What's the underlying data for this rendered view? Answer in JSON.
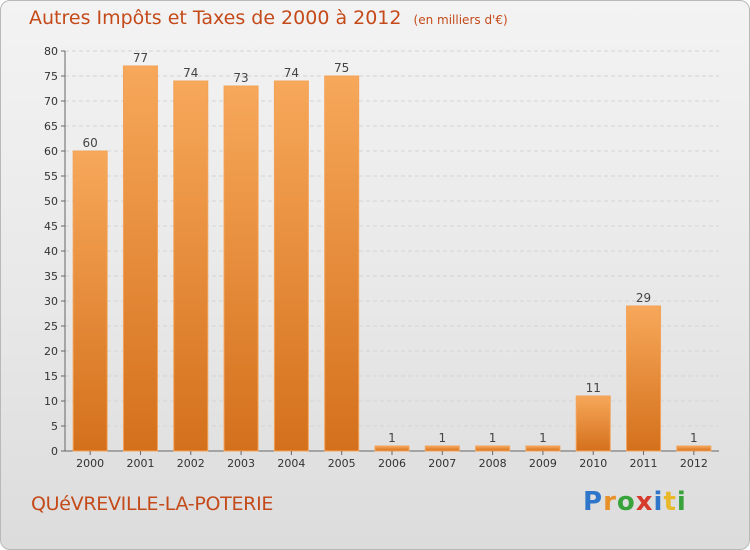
{
  "title": "Autres Impôts et Taxes de 2000 à 2012",
  "unit": "(en milliers d'€)",
  "commune": "QUéVREVILLE-LA-POTERIE",
  "logo": {
    "p": "P",
    "r": "r",
    "o": "o",
    "x": "x",
    "i": "i",
    "t": "t",
    "i2": "i"
  },
  "colors": {
    "bar": "#e98a2e",
    "bar_light": "#f7a85a",
    "title": "#c44a1a"
  },
  "chart_data": {
    "type": "bar",
    "categories": [
      "2000",
      "2001",
      "2002",
      "2003",
      "2004",
      "2005",
      "2006",
      "2007",
      "2008",
      "2009",
      "2010",
      "2011",
      "2012"
    ],
    "values": [
      60,
      77,
      74,
      73,
      74,
      75,
      1,
      1,
      1,
      1,
      11,
      29,
      1
    ],
    "ylim": [
      0,
      80
    ],
    "yticks": [
      0,
      5,
      10,
      15,
      20,
      25,
      30,
      35,
      40,
      45,
      50,
      55,
      60,
      65,
      70,
      75,
      80
    ],
    "grid": true
  }
}
